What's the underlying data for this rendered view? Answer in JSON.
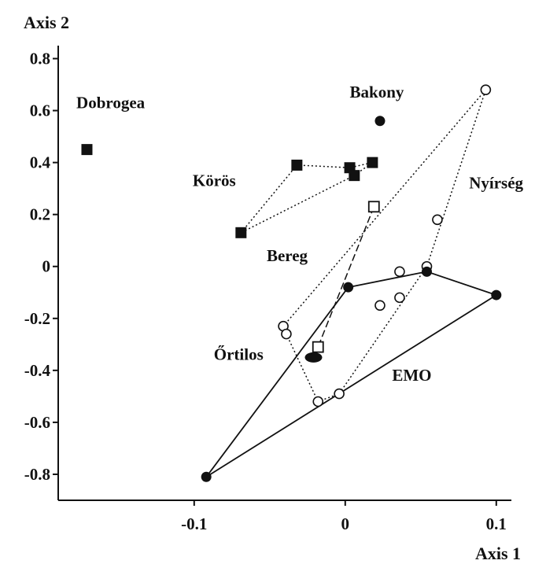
{
  "chart_data": {
    "type": "scatter",
    "xlabel": "Axis 1",
    "ylabel": "Axis 2",
    "xlim": [
      -0.19,
      0.11
    ],
    "ylim": [
      -0.9,
      0.85
    ],
    "x_ticks": [
      -0.1,
      0,
      0.1
    ],
    "x_tick_labels": [
      "-0.1",
      "0",
      "0.1"
    ],
    "y_ticks": [
      0.8,
      0.6,
      0.4,
      0.2,
      0,
      -0.2,
      -0.4,
      -0.6,
      -0.8
    ],
    "y_tick_labels": [
      "0.8",
      "0.6",
      "0.4",
      "0.2",
      "0",
      "-0.2",
      "-0.4",
      "-0.6",
      "-0.8"
    ],
    "grid": false,
    "legend": "none",
    "colors": {
      "ink": "#111111",
      "background": "#ffffff"
    },
    "series": [
      {
        "name": "Körös",
        "marker": "filled-square",
        "line": "dotted",
        "points": [
          [
            -0.069,
            0.13
          ],
          [
            -0.032,
            0.39
          ],
          [
            0.003,
            0.38
          ],
          [
            0.018,
            0.4
          ],
          [
            0.006,
            0.35
          ]
        ],
        "hull": [
          [
            -0.069,
            0.13
          ],
          [
            -0.032,
            0.39
          ],
          [
            0.003,
            0.38
          ],
          [
            0.018,
            0.4
          ],
          [
            0.006,
            0.35
          ],
          [
            -0.069,
            0.13
          ]
        ]
      },
      {
        "name": "Dobrogea",
        "marker": "filled-square",
        "line": "none",
        "points": [
          [
            -0.171,
            0.45
          ]
        ],
        "hull": []
      },
      {
        "name": "Bakony",
        "marker": "filled-circle",
        "line": "none",
        "points": [
          [
            0.023,
            0.56
          ]
        ],
        "hull": []
      },
      {
        "name": "Bereg",
        "marker": "open-square",
        "line": "dashed",
        "points": [
          [
            0.019,
            0.23
          ],
          [
            -0.018,
            -0.31
          ]
        ],
        "hull": [
          [
            0.019,
            0.23
          ],
          [
            -0.018,
            -0.31
          ]
        ]
      },
      {
        "name": "Nyírség",
        "marker": "open-circle",
        "line": "dotted",
        "points": [
          [
            0.093,
            0.68
          ],
          [
            0.061,
            0.18
          ],
          [
            0.054,
            0.0
          ],
          [
            0.036,
            -0.02
          ],
          [
            0.036,
            -0.12
          ],
          [
            0.023,
            -0.15
          ],
          [
            -0.041,
            -0.23
          ],
          [
            -0.039,
            -0.26
          ],
          [
            -0.018,
            -0.52
          ],
          [
            -0.004,
            -0.49
          ]
        ],
        "hull": [
          [
            0.093,
            0.68
          ],
          [
            -0.041,
            -0.23
          ],
          [
            -0.039,
            -0.26
          ],
          [
            -0.018,
            -0.52
          ],
          [
            -0.004,
            -0.49
          ],
          [
            0.054,
            0.0
          ],
          [
            0.093,
            0.68
          ]
        ]
      },
      {
        "name": "EMO",
        "marker": "filled-circle",
        "line": "solid",
        "points": [
          [
            0.002,
            -0.08
          ],
          [
            0.054,
            -0.02
          ],
          [
            0.1,
            -0.11
          ],
          [
            -0.092,
            -0.81
          ]
        ],
        "hull": [
          [
            0.002,
            -0.08
          ],
          [
            0.054,
            -0.02
          ],
          [
            0.1,
            -0.11
          ],
          [
            -0.092,
            -0.81
          ],
          [
            0.002,
            -0.08
          ]
        ]
      },
      {
        "name": "Őrtilos",
        "marker": "filled-ellipse",
        "line": "none",
        "points": [
          [
            -0.021,
            -0.35
          ]
        ],
        "hull": []
      }
    ],
    "labels": [
      {
        "text": "Dobrogea",
        "x": -0.178,
        "y": 0.61
      },
      {
        "text": "Bakony",
        "x": 0.003,
        "y": 0.65
      },
      {
        "text": "Körös",
        "x": -0.101,
        "y": 0.31
      },
      {
        "text": "Nyírség",
        "x": 0.082,
        "y": 0.3
      },
      {
        "text": "Bereg",
        "x": -0.052,
        "y": 0.02
      },
      {
        "text": "Őrtilos",
        "x": -0.087,
        "y": -0.36
      },
      {
        "text": "EMO",
        "x": 0.031,
        "y": -0.44
      }
    ]
  }
}
